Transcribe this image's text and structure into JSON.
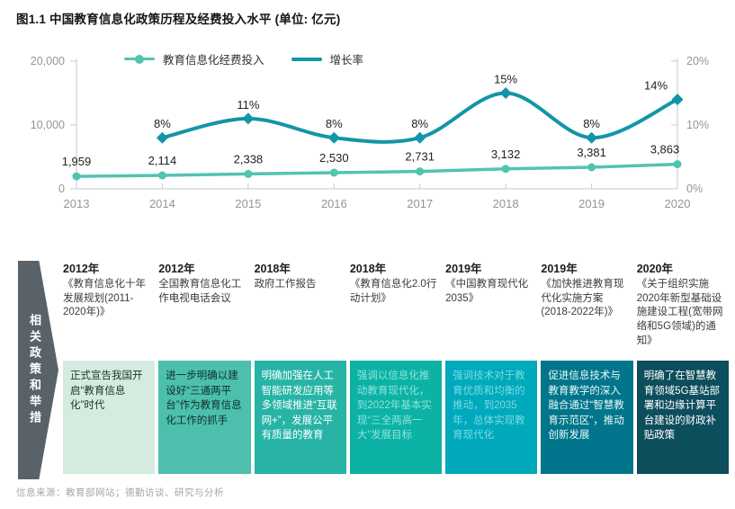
{
  "title": "图1.1 中国教育信息化政策历程及经费投入水平 (单位: 亿元)",
  "source": "信息来源：教育部网站；德勤访谈、研究与分析",
  "colors": {
    "investment_line": "#53c3b1",
    "growth_line": "#1295a8",
    "axis": "#c6cacd",
    "tick_label": "#8f979b",
    "data_label": "#212121",
    "banner_bg": "#5a6269"
  },
  "chart_data": {
    "type": "line",
    "title": "图1.1 中国教育信息化政策历程及经费投入水平 (单位: 亿元)",
    "categories": [
      "2013",
      "2014",
      "2015",
      "2016",
      "2017",
      "2018",
      "2019",
      "2020"
    ],
    "grid": false,
    "legend_position": "top",
    "left_axis": {
      "max": 20000,
      "ticks": [
        {
          "label": "20,000",
          "value": 20000
        },
        {
          "label": "10,000",
          "value": 10000
        },
        {
          "label": "0",
          "value": 0
        }
      ]
    },
    "right_axis": {
      "max": 20,
      "ticks": [
        {
          "label": "20%",
          "value": 20
        },
        {
          "label": "10%",
          "value": 10
        },
        {
          "label": "0%",
          "value": 0
        }
      ]
    },
    "series": [
      {
        "name": "教育信息化经费投入",
        "axis": "left",
        "marker": "circle",
        "smooth": false,
        "color": "#53c3b1",
        "points": [
          {
            "x": "2013",
            "y": 1959,
            "label": "1,959"
          },
          {
            "x": "2014",
            "y": 2114,
            "label": "2,114"
          },
          {
            "x": "2015",
            "y": 2338,
            "label": "2,338"
          },
          {
            "x": "2016",
            "y": 2530,
            "label": "2,530"
          },
          {
            "x": "2017",
            "y": 2731,
            "label": "2,731"
          },
          {
            "x": "2018",
            "y": 3132,
            "label": "3,132"
          },
          {
            "x": "2019",
            "y": 3381,
            "label": "3,381"
          },
          {
            "x": "2020",
            "y": 3863,
            "label": "3,863"
          }
        ]
      },
      {
        "name": "增长率",
        "axis": "right",
        "marker": "diamond",
        "smooth": true,
        "color": "#1295a8",
        "points": [
          {
            "x": "2014",
            "y": 8,
            "label": "8%"
          },
          {
            "x": "2015",
            "y": 11,
            "label": "11%"
          },
          {
            "x": "2016",
            "y": 8,
            "label": "8%"
          },
          {
            "x": "2017",
            "y": 8,
            "label": "8%"
          },
          {
            "x": "2018",
            "y": 15,
            "label": "15%"
          },
          {
            "x": "2019",
            "y": 8,
            "label": "8%"
          },
          {
            "x": "2020",
            "y": 14,
            "label": "14%"
          }
        ]
      }
    ]
  },
  "banner": {
    "label": "相关政策和举措"
  },
  "timeline": {
    "items": [
      {
        "year": "2012年",
        "title": "《教育信息化十年发展规划(2011-2020年)》",
        "note": "正式宣告我国开启“教育信息化”时代",
        "box_bg": "#d6ebe0",
        "box_fg": "#17332c"
      },
      {
        "year": "2012年",
        "title": "全国教育信息化工作电视电话会议",
        "note": "进一步明确以建设好“三通两平台”作为教育信息化工作的抓手",
        "box_bg": "#4cc0ad",
        "box_fg": "#0f2f2a"
      },
      {
        "year": "2018年",
        "title": "政府工作报告",
        "note": "明确加强在人工智能研发应用等多领域推进“互联网+”，发展公平有质量的教育",
        "box_bg": "#27b4a6",
        "box_fg": "#ffffff"
      },
      {
        "year": "2018年",
        "title": "《教育信息化2.0行动计划》",
        "note": "强调以信息化推动教育现代化，到2022年基本实现“三全两高一大”发展目标",
        "box_bg": "#0cb2a6",
        "box_fg": "#8ce4da"
      },
      {
        "year": "2019年",
        "title": "《中国教育现代化2035》",
        "note": "强调技术对于教育优质和均衡的推动，到2035年，总体实现教育现代化",
        "box_bg": "#00a9bb",
        "box_fg": "#79dce6"
      },
      {
        "year": "2019年",
        "title": "《加快推进教育现代化实施方案 (2018-2022年)》",
        "note": "促进信息技术与教育教学的深入融合通过“智慧教育示范区”，推动创新发展",
        "box_bg": "#00758b",
        "box_fg": "#eafaf8"
      },
      {
        "year": "2020年",
        "title": "《关于组织实施2020年新型基础设施建设工程(宽带网络和5G领域)的通知》",
        "note": "明确了在智慧教育领域5G基站部署和边缘计算平台建设的财政补贴政策",
        "box_bg": "#0d4e5d",
        "box_fg": "#ffffff"
      }
    ]
  }
}
